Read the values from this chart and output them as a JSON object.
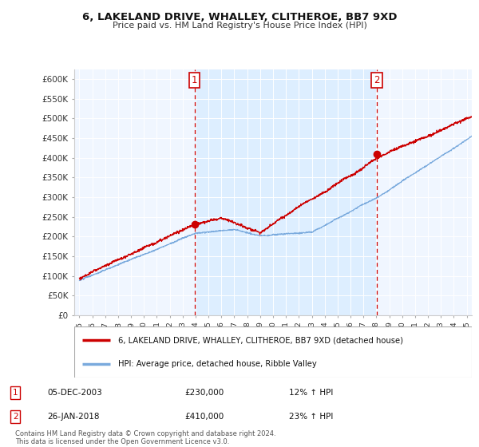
{
  "title": "6, LAKELAND DRIVE, WHALLEY, CLITHEROE, BB7 9XD",
  "subtitle": "Price paid vs. HM Land Registry's House Price Index (HPI)",
  "ylabel_ticks": [
    "£0",
    "£50K",
    "£100K",
    "£150K",
    "£200K",
    "£250K",
    "£300K",
    "£350K",
    "£400K",
    "£450K",
    "£500K",
    "£550K",
    "£600K"
  ],
  "ytick_vals": [
    0,
    50000,
    100000,
    150000,
    200000,
    250000,
    300000,
    350000,
    400000,
    450000,
    500000,
    550000,
    600000
  ],
  "ylim": [
    0,
    625000
  ],
  "sale1_date": "05-DEC-2003",
  "sale1_price": 230000,
  "sale1_hpi": "12% ↑ HPI",
  "sale2_date": "26-JAN-2018",
  "sale2_price": 410000,
  "sale2_hpi": "23% ↑ HPI",
  "legend_line1": "6, LAKELAND DRIVE, WHALLEY, CLITHEROE, BB7 9XD (detached house)",
  "legend_line2": "HPI: Average price, detached house, Ribble Valley",
  "footer": "Contains HM Land Registry data © Crown copyright and database right 2024.\nThis data is licensed under the Open Government Licence v3.0.",
  "line_color_red": "#cc0000",
  "line_color_blue": "#7aaadd",
  "fill_color": "#ddeeff",
  "bg_color_between": "#e8f2ff",
  "grid_color": "#cccccc",
  "sale1_year": 2003.917,
  "sale2_year": 2018.042
}
